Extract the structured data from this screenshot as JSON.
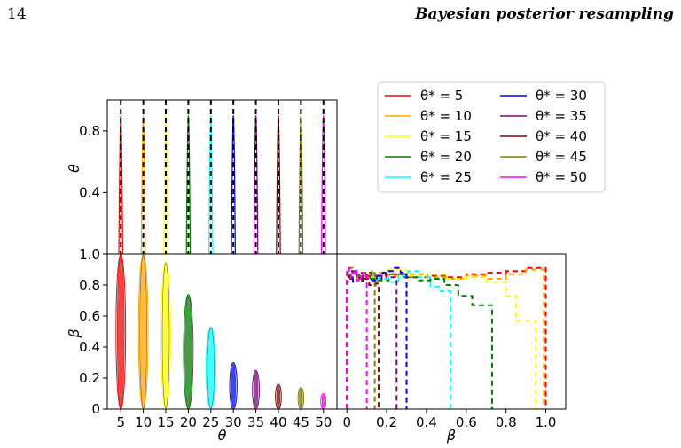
{
  "page": {
    "number": "14",
    "running_head": "Bayesian posterior resampling"
  },
  "chart_data": [
    {
      "panel": "theta-marginal",
      "type": "line",
      "ylabel": "θ",
      "ylim": [
        0,
        1.0
      ],
      "yticks": [
        "0.4",
        "0.8"
      ],
      "xlim": [
        2,
        53
      ],
      "truth_lines": [
        5,
        10,
        15,
        20,
        25,
        30,
        35,
        40,
        45,
        50
      ],
      "peak_height": 0.9,
      "peak_width": 0.35
    },
    {
      "panel": "beta-vs-theta",
      "type": "scatter",
      "xlabel": "θ",
      "ylabel": "β",
      "xlim": [
        2,
        53
      ],
      "ylim": [
        0,
        1.0
      ],
      "xticks": [
        "5",
        "10",
        "15",
        "20",
        "25",
        "30",
        "35",
        "40",
        "45",
        "50"
      ],
      "yticks": [
        "0",
        "0.2",
        "0.4",
        "0.6",
        "0.8",
        "1.0"
      ],
      "contours": [
        {
          "theta": 5,
          "beta_top": 1.0
        },
        {
          "theta": 10,
          "beta_top": 1.0
        },
        {
          "theta": 15,
          "beta_top": 0.95
        },
        {
          "theta": 20,
          "beta_top": 0.74
        },
        {
          "theta": 25,
          "beta_top": 0.53
        },
        {
          "theta": 30,
          "beta_top": 0.3
        },
        {
          "theta": 35,
          "beta_top": 0.25
        },
        {
          "theta": 40,
          "beta_top": 0.16
        },
        {
          "theta": 45,
          "beta_top": 0.14
        },
        {
          "theta": 50,
          "beta_top": 0.1
        }
      ]
    },
    {
      "panel": "beta-marginal",
      "type": "line",
      "xlabel": "β",
      "xlim": [
        -0.05,
        1.1
      ],
      "ylim": [
        0,
        1.0
      ],
      "xticks": [
        "0",
        "0.2",
        "0.4",
        "0.6",
        "0.8",
        "1.0"
      ],
      "histograms": [
        {
          "name": "θ* = 5",
          "edges": [
            0,
            0.1,
            0.2,
            0.3,
            0.4,
            0.5,
            0.6,
            0.7,
            0.8,
            0.9,
            1.0
          ],
          "heights": [
            0.88,
            0.86,
            0.87,
            0.85,
            0.86,
            0.85,
            0.87,
            0.88,
            0.89,
            0.91
          ]
        },
        {
          "name": "θ* = 10",
          "edges": [
            0,
            0.1,
            0.2,
            0.3,
            0.4,
            0.5,
            0.6,
            0.7,
            0.8,
            0.9,
            0.99
          ],
          "heights": [
            0.85,
            0.88,
            0.86,
            0.87,
            0.85,
            0.84,
            0.86,
            0.84,
            0.87,
            0.9
          ]
        },
        {
          "name": "θ* = 15",
          "edges": [
            0,
            0.1,
            0.2,
            0.3,
            0.4,
            0.5,
            0.6,
            0.7,
            0.8,
            0.85,
            0.9,
            0.95
          ],
          "heights": [
            0.87,
            0.85,
            0.9,
            0.86,
            0.87,
            0.84,
            0.85,
            0.82,
            0.73,
            0.57,
            0.57
          ]
        },
        {
          "name": "θ* = 20",
          "edges": [
            0,
            0.07,
            0.14,
            0.21,
            0.28,
            0.35,
            0.42,
            0.49,
            0.56,
            0.63,
            0.73
          ],
          "heights": [
            0.86,
            0.84,
            0.83,
            0.87,
            0.85,
            0.83,
            0.84,
            0.8,
            0.73,
            0.67
          ]
        },
        {
          "name": "θ* = 25",
          "edges": [
            0,
            0.05,
            0.1,
            0.16,
            0.21,
            0.26,
            0.31,
            0.36,
            0.42,
            0.47,
            0.52
          ],
          "heights": [
            0.88,
            0.85,
            0.87,
            0.84,
            0.82,
            0.86,
            0.89,
            0.85,
            0.79,
            0.76
          ]
        },
        {
          "name": "θ* = 30",
          "edges": [
            0,
            0.03,
            0.06,
            0.09,
            0.12,
            0.15,
            0.18,
            0.21,
            0.24,
            0.27,
            0.3
          ],
          "heights": [
            0.82,
            0.85,
            0.88,
            0.85,
            0.83,
            0.86,
            0.88,
            0.89,
            0.91,
            0.88
          ]
        },
        {
          "name": "θ* = 35",
          "edges": [
            0,
            0.025,
            0.05,
            0.075,
            0.1,
            0.125,
            0.15,
            0.175,
            0.2,
            0.225,
            0.25
          ],
          "heights": [
            0.84,
            0.89,
            0.86,
            0.83,
            0.88,
            0.86,
            0.84,
            0.87,
            0.85,
            0.85
          ]
        },
        {
          "name": "θ* = 40",
          "edges": [
            0,
            0.016,
            0.032,
            0.048,
            0.064,
            0.08,
            0.096,
            0.112,
            0.128,
            0.144,
            0.16
          ],
          "heights": [
            0.85,
            0.87,
            0.88,
            0.86,
            0.83,
            0.86,
            0.84,
            0.8,
            0.8,
            0.81
          ]
        },
        {
          "name": "θ* = 45",
          "edges": [
            0,
            0.014,
            0.028,
            0.042,
            0.056,
            0.07,
            0.084,
            0.098,
            0.112,
            0.126,
            0.14
          ],
          "heights": [
            0.87,
            0.91,
            0.88,
            0.85,
            0.86,
            0.87,
            0.88,
            0.85,
            0.86,
            0.89
          ]
        },
        {
          "name": "θ* = 50",
          "edges": [
            0,
            0.01,
            0.02,
            0.03,
            0.04,
            0.05,
            0.06,
            0.07,
            0.08,
            0.09,
            0.1
          ],
          "heights": [
            0.91,
            0.88,
            0.85,
            0.88,
            0.9,
            0.83,
            0.86,
            0.84,
            0.88,
            0.86
          ]
        }
      ]
    }
  ],
  "legend": {
    "placement": "top-right",
    "entries": [
      {
        "label": "θ* = 5",
        "color": "#ff0000"
      },
      {
        "label": "θ* = 10",
        "color": "#ffa500"
      },
      {
        "label": "θ* = 15",
        "color": "#ffff00"
      },
      {
        "label": "θ* = 20",
        "color": "#008000"
      },
      {
        "label": "θ* = 25",
        "color": "#00ffff"
      },
      {
        "label": "θ* = 30",
        "color": "#0000ff"
      },
      {
        "label": "θ* = 35",
        "color": "#800080"
      },
      {
        "label": "θ* = 40",
        "color": "#800000"
      },
      {
        "label": "θ* = 45",
        "color": "#808000"
      },
      {
        "label": "θ* = 50",
        "color": "#ff00ff"
      }
    ]
  }
}
